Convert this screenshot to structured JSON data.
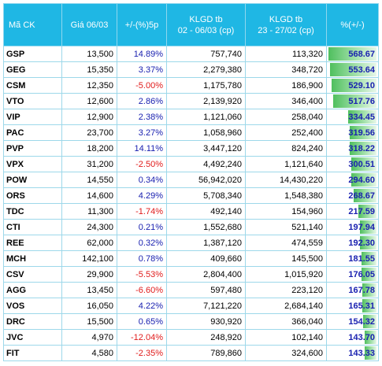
{
  "headers": [
    "Mã CK",
    "Giá 06/03",
    "+/-(%)5p",
    "KLGD tb\n02 - 06/03 (cp)",
    "KLGD tb\n23 - 27/02 (cp)",
    "%(+/-)"
  ],
  "rows": [
    {
      "code": "GSP",
      "price": "13,500",
      "change": "14.89%",
      "klgd1": "757,740",
      "klgd2": "113,320",
      "pct": "568.67",
      "level": 1.0
    },
    {
      "code": "GEG",
      "price": "15,350",
      "change": "3.37%",
      "klgd1": "2,279,380",
      "klgd2": "348,720",
      "pct": "553.64",
      "level": 0.974
    },
    {
      "code": "CSM",
      "price": "12,350",
      "change": "-5.00%",
      "klgd1": "1,175,780",
      "klgd2": "186,900",
      "pct": "529.10",
      "level": 0.93
    },
    {
      "code": "VTO",
      "price": "12,600",
      "change": "2.86%",
      "klgd1": "2,139,920",
      "klgd2": "346,400",
      "pct": "517.76",
      "level": 0.91
    },
    {
      "code": "VIP",
      "price": "12,900",
      "change": "2.38%",
      "klgd1": "1,121,060",
      "klgd2": "258,040",
      "pct": "334.45",
      "level": 0.588
    },
    {
      "code": "PAC",
      "price": "23,700",
      "change": "3.27%",
      "klgd1": "1,058,960",
      "klgd2": "252,400",
      "pct": "319.56",
      "level": 0.562
    },
    {
      "code": "PVP",
      "price": "18,200",
      "change": "14.11%",
      "klgd1": "3,447,120",
      "klgd2": "824,240",
      "pct": "318.22",
      "level": 0.56
    },
    {
      "code": "VPX",
      "price": "31,200",
      "change": "-2.50%",
      "klgd1": "4,492,240",
      "klgd2": "1,121,640",
      "pct": "300.51",
      "level": 0.528
    },
    {
      "code": "POW",
      "price": "14,550",
      "change": "0.34%",
      "klgd1": "56,942,020",
      "klgd2": "14,430,220",
      "pct": "294.60",
      "level": 0.518
    },
    {
      "code": "ORS",
      "price": "14,600",
      "change": "4.29%",
      "klgd1": "5,708,340",
      "klgd2": "1,548,380",
      "pct": "268.67",
      "level": 0.472
    },
    {
      "code": "TDC",
      "price": "11,300",
      "change": "-1.74%",
      "klgd1": "492,140",
      "klgd2": "154,960",
      "pct": "217.59",
      "level": 0.383
    },
    {
      "code": "CTI",
      "price": "24,300",
      "change": "0.21%",
      "klgd1": "1,552,680",
      "klgd2": "521,140",
      "pct": "197.94",
      "level": 0.348
    },
    {
      "code": "REE",
      "price": "62,000",
      "change": "0.32%",
      "klgd1": "1,387,120",
      "klgd2": "474,559",
      "pct": "192.30",
      "level": 0.338
    },
    {
      "code": "MCH",
      "price": "142,100",
      "change": "0.78%",
      "klgd1": "409,660",
      "klgd2": "145,500",
      "pct": "181.55",
      "level": 0.319
    },
    {
      "code": "CSV",
      "price": "29,900",
      "change": "-5.53%",
      "klgd1": "2,804,400",
      "klgd2": "1,015,920",
      "pct": "176.05",
      "level": 0.31
    },
    {
      "code": "AGG",
      "price": "13,450",
      "change": "-6.60%",
      "klgd1": "597,480",
      "klgd2": "223,120",
      "pct": "167.78",
      "level": 0.295
    },
    {
      "code": "VOS",
      "price": "16,050",
      "change": "4.22%",
      "klgd1": "7,121,220",
      "klgd2": "2,684,140",
      "pct": "165.31",
      "level": 0.291
    },
    {
      "code": "DRC",
      "price": "15,500",
      "change": "0.65%",
      "klgd1": "930,920",
      "klgd2": "366,040",
      "pct": "154.32",
      "level": 0.271
    },
    {
      "code": "JVC",
      "price": "4,970",
      "change": "-12.04%",
      "klgd1": "248,920",
      "klgd2": "102,140",
      "pct": "143.70",
      "level": 0.253
    },
    {
      "code": "FIT",
      "price": "4,580",
      "change": "-2.35%",
      "klgd1": "789,860",
      "klgd2": "324,600",
      "pct": "143.33",
      "level": 0.252
    }
  ],
  "colors": {
    "header_bg": "#1fb7e4",
    "positive": "#1a21b0",
    "negative": "#e01b1b",
    "bar": "#4fbf5e"
  }
}
